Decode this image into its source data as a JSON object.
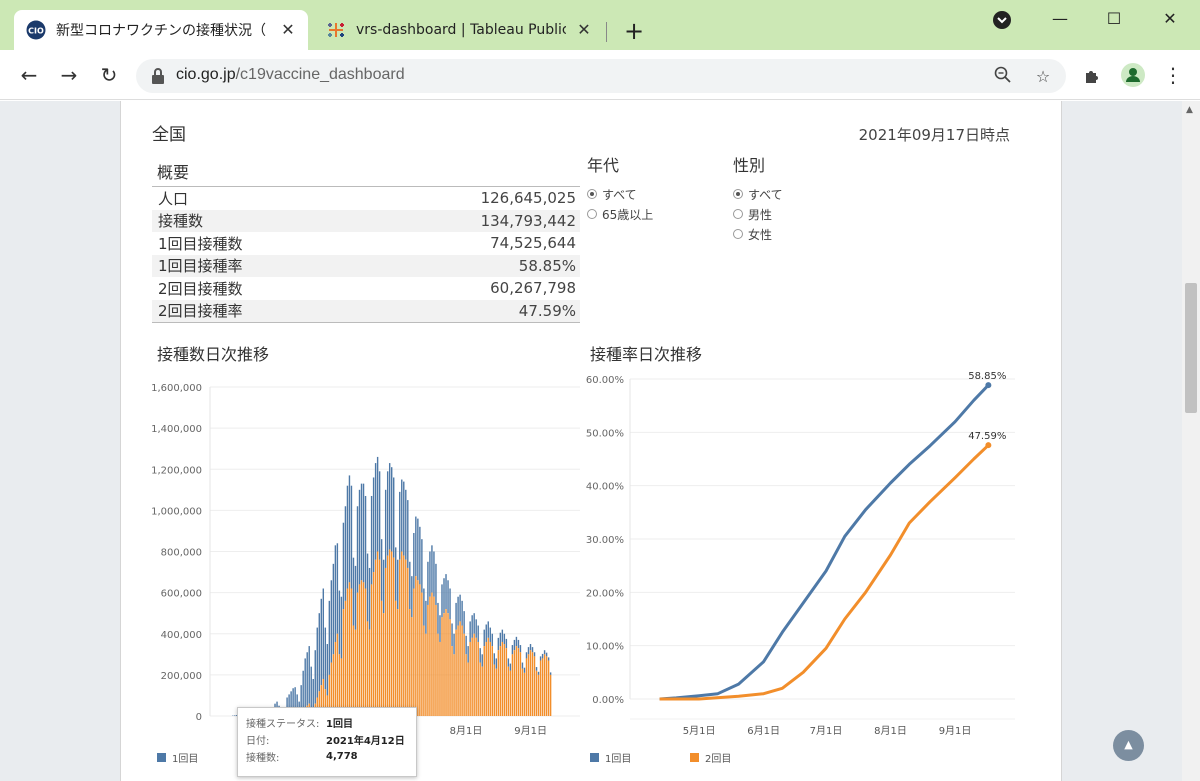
{
  "browser": {
    "tabs": [
      {
        "title": "新型コロナワクチンの接種状況（一般",
        "favicon": "cio-logo"
      },
      {
        "title": "vrs-dashboard | Tableau Public",
        "favicon": "tableau-logo"
      }
    ],
    "url_host": "cio.go.jp",
    "url_path": "/c19vaccine_dashboard",
    "new_tab": "+",
    "icons": [
      "back-icon",
      "forward-icon",
      "reload-icon",
      "lock-icon",
      "zoom-icon",
      "star-icon",
      "extensions-icon",
      "profile-icon",
      "menu-icon"
    ]
  },
  "dashboard": {
    "region": "全国",
    "as_of": "2021年09月17日時点",
    "summary_title": "概要",
    "summary": [
      {
        "label": "人口",
        "value": "126,645,025"
      },
      {
        "label": "接種数",
        "value": "134,793,442"
      },
      {
        "label": "1回目接種数",
        "value": "74,525,644"
      },
      {
        "label": "1回目接種率",
        "value": "58.85%"
      },
      {
        "label": "2回目接種数",
        "value": "60,267,798"
      },
      {
        "label": "2回目接種率",
        "value": "47.59%"
      }
    ],
    "filters": {
      "age": {
        "title": "年代",
        "options": [
          "すべて",
          "65歳以上"
        ],
        "selected": 0
      },
      "sex": {
        "title": "性別",
        "options": [
          "すべて",
          "男性",
          "女性"
        ],
        "selected": 0
      }
    },
    "bar_title": "接種数日次推移",
    "line_title": "接種率日次推移",
    "legend": {
      "first": "1回目",
      "second": "2回目"
    },
    "tooltip": {
      "status_key": "接種ステータス:",
      "status_val": "1回目",
      "date_key": "日付:",
      "date_val": "2021年4月12日",
      "count_key": "接種数:",
      "count_val": "4,778"
    },
    "colors": {
      "first": "#4e79a7",
      "second": "#f28e2b"
    }
  },
  "chart_data": [
    {
      "type": "bar",
      "title": "接種数日次推移",
      "stacked": true,
      "ylim": [
        0,
        1600000
      ],
      "yticks": [
        "1,600,000",
        "1,400,000",
        "1,200,000",
        "1,000,000",
        "800,000",
        "600,000",
        "400,000",
        "200,000",
        "0"
      ],
      "xticks": [
        "8月1日",
        "9月1日"
      ],
      "x_range": [
        "2021-04-05",
        "2021-09-17"
      ],
      "series": [
        {
          "name": "1回目",
          "values": [
            0,
            0,
            0,
            0,
            0,
            0,
            2000,
            3000,
            4778,
            3000,
            2500,
            1000,
            0,
            0,
            0,
            0,
            0,
            10000,
            14000,
            16000,
            18000,
            12000,
            9000,
            6000,
            5000,
            20000,
            40000,
            60000,
            70000,
            50000,
            30000,
            20000,
            30000,
            80000,
            90000,
            100000,
            110000,
            120000,
            90000,
            60000,
            130000,
            190000,
            240000,
            260000,
            280000,
            200000,
            150000,
            260000,
            340000,
            380000,
            420000,
            440000,
            300000,
            250000,
            360000,
            400000,
            440000,
            470000,
            440000,
            310000,
            300000,
            420000,
            460000,
            500000,
            520000,
            500000,
            330000,
            310000,
            420000,
            460000,
            470000,
            480000,
            450000,
            330000,
            300000,
            430000,
            460000,
            470000,
            460000,
            430000,
            300000,
            260000,
            380000,
            410000,
            420000,
            410000,
            390000,
            260000,
            240000,
            330000,
            350000,
            360000,
            340000,
            330000,
            230000,
            200000,
            270000,
            290000,
            300000,
            280000,
            260000,
            180000,
            160000,
            210000,
            220000,
            230000,
            220000,
            200000,
            150000,
            130000,
            160000,
            170000,
            170000,
            160000,
            150000,
            110000,
            100000,
            130000,
            140000,
            130000,
            120000,
            110000,
            90000,
            80000,
            100000,
            110000,
            100000,
            90000,
            80000,
            70000,
            60000,
            80000,
            85000,
            80000,
            70000,
            60000,
            55000,
            50000,
            60000,
            65000,
            60000,
            50000,
            45000,
            40000,
            35000,
            45000,
            50000,
            45000,
            40000,
            35000,
            30000,
            25000,
            30000,
            35000,
            30000,
            25000,
            20000,
            18000,
            15000,
            20000,
            22000,
            20000,
            18000,
            15000,
            12000,
            10000,
            12000,
            14000,
            13000,
            11000,
            10000
          ]
        },
        {
          "name": "2回目",
          "values": [
            0,
            0,
            0,
            0,
            0,
            0,
            0,
            0,
            0,
            0,
            0,
            0,
            0,
            0,
            0,
            0,
            0,
            0,
            0,
            0,
            0,
            0,
            0,
            0,
            0,
            0,
            0,
            0,
            0,
            0,
            0,
            0,
            5000,
            10000,
            15000,
            20000,
            25000,
            20000,
            15000,
            10000,
            20000,
            30000,
            40000,
            50000,
            60000,
            40000,
            30000,
            60000,
            90000,
            120000,
            150000,
            180000,
            130000,
            100000,
            200000,
            260000,
            300000,
            360000,
            400000,
            300000,
            280000,
            520000,
            560000,
            620000,
            650000,
            620000,
            440000,
            420000,
            600000,
            640000,
            660000,
            650000,
            620000,
            460000,
            420000,
            640000,
            700000,
            760000,
            800000,
            760000,
            560000,
            500000,
            720000,
            780000,
            810000,
            800000,
            770000,
            560000,
            520000,
            760000,
            800000,
            780000,
            760000,
            720000,
            520000,
            480000,
            620000,
            680000,
            660000,
            640000,
            600000,
            440000,
            400000,
            540000,
            580000,
            600000,
            580000,
            540000,
            400000,
            360000,
            480000,
            500000,
            520000,
            500000,
            470000,
            340000,
            300000,
            420000,
            440000,
            460000,
            440000,
            400000,
            300000,
            260000,
            360000,
            380000,
            400000,
            380000,
            360000,
            260000,
            240000,
            340000,
            360000,
            380000,
            360000,
            340000,
            250000,
            230000,
            320000,
            340000,
            360000,
            350000,
            330000,
            240000,
            220000,
            300000,
            320000,
            340000,
            330000,
            310000,
            230000,
            210000,
            280000,
            300000,
            320000,
            310000,
            290000,
            220000,
            200000,
            270000,
            280000,
            300000,
            290000,
            270000,
            200000
          ]
        }
      ]
    },
    {
      "type": "line",
      "title": "接種率日次推移",
      "ylim": [
        0,
        60
      ],
      "yticks": [
        "60.00%",
        "50.00%",
        "40.00%",
        "30.00%",
        "20.00%",
        "10.00%",
        "0.00%"
      ],
      "xticks": [
        "5月1日",
        "6月1日",
        "7月1日",
        "8月1日",
        "9月1日"
      ],
      "series": [
        {
          "name": "1回目",
          "end_label": "58.85%",
          "x": [
            "2021-04-12",
            "2021-04-20",
            "2021-05-01",
            "2021-05-10",
            "2021-05-20",
            "2021-06-01",
            "2021-06-10",
            "2021-06-20",
            "2021-07-01",
            "2021-07-10",
            "2021-07-20",
            "2021-08-01",
            "2021-08-10",
            "2021-08-20",
            "2021-09-01",
            "2021-09-10",
            "2021-09-17"
          ],
          "y": [
            0.0,
            0.2,
            0.6,
            1.0,
            2.8,
            7.0,
            12.5,
            18.0,
            24.0,
            30.5,
            35.5,
            40.5,
            44.0,
            47.5,
            52.0,
            56.0,
            58.85
          ]
        },
        {
          "name": "2回目",
          "end_label": "47.59%",
          "x": [
            "2021-04-12",
            "2021-05-01",
            "2021-05-20",
            "2021-06-01",
            "2021-06-10",
            "2021-06-20",
            "2021-07-01",
            "2021-07-10",
            "2021-07-20",
            "2021-08-01",
            "2021-08-10",
            "2021-08-20",
            "2021-09-01",
            "2021-09-10",
            "2021-09-17"
          ],
          "y": [
            0.0,
            0.0,
            0.5,
            1.0,
            2.0,
            5.0,
            9.5,
            15.0,
            20.0,
            27.0,
            33.0,
            37.0,
            41.5,
            45.0,
            47.59
          ]
        }
      ]
    }
  ]
}
